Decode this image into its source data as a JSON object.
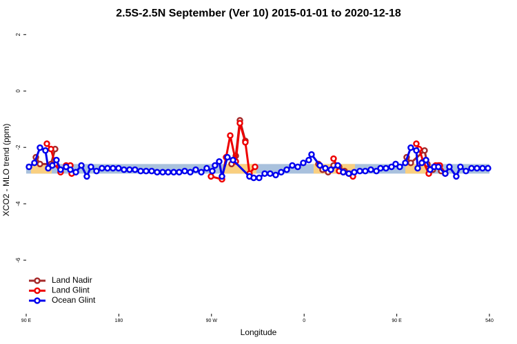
{
  "chart_data": {
    "type": "line",
    "title": "2.5S-2.5N September (Ver 10)   2015-01-01 to 2020-12-18",
    "x_label": "Longitude",
    "y_label": "XCO2 - MLO trend (ppm)",
    "xlim": [
      90,
      540
    ],
    "ylim": [
      -7.9,
      2.3
    ],
    "xticks": [
      {
        "value": 90,
        "label": "90 E"
      },
      180,
      {
        "value": 270,
        "label": "90 W"
      },
      {
        "value": 360,
        "label": "0"
      },
      {
        "value": 450,
        "label": "90 E"
      },
      540
    ],
    "yticks": [
      -6,
      -4,
      -2,
      0,
      2
    ],
    "legend": "bottom-left",
    "band": {
      "lower": -2.93,
      "upper": -2.59,
      "color": "#a9c1dd",
      "land_color": "#f9cf80",
      "land_segments": [
        [
          94.7,
          114.8
        ],
        [
          282.2,
          313.6
        ],
        [
          369.2,
          409.4
        ],
        [
          458.3,
          483.1
        ]
      ]
    },
    "series": [
      {
        "name": "Land Nadir",
        "color": "#a52a2a",
        "x": [
          99.4,
          103.4,
          114.1,
          118.1,
          289.5,
          293.6,
          297.6,
          302.9,
          373.9,
          377.9,
          383.3,
          388.6,
          394.0,
          399.3,
          459.6,
          463.6,
          477.0,
          479.7,
          485.0,
          490.4,
          493.1
        ],
        "values": [
          -2.35,
          -2.59,
          -2.59,
          -2.06,
          -2.59,
          -2.3,
          -1.04,
          -1.77,
          -2.59,
          -2.79,
          -2.88,
          -2.64,
          -2.69,
          -2.84,
          -2.35,
          -2.55,
          -2.11,
          -2.59,
          -2.79,
          -2.64,
          -2.84
        ]
      },
      {
        "name": "Land Glint",
        "color": "#ee0000",
        "x": [
          110.1,
          114.1,
          118.1,
          123.4,
          128.8,
          132.9,
          134.2,
          269.5,
          280.2,
          284.2,
          288.2,
          293.6,
          297.6,
          302.9,
          306.9,
          312.3,
          388.6,
          394.0,
          398.0,
          403.4,
          407.4,
          469.0,
          471.7,
          475.7,
          481.1,
          487.8,
          491.8,
          497.1
        ],
        "values": [
          -1.87,
          -2.06,
          -2.59,
          -2.88,
          -2.64,
          -2.64,
          -2.93,
          -3.03,
          -3.13,
          -2.35,
          -1.58,
          -2.5,
          -1.14,
          -1.82,
          -2.93,
          -2.69,
          -2.4,
          -2.84,
          -2.88,
          -2.93,
          -3.03,
          -1.87,
          -2.06,
          -2.5,
          -2.93,
          -2.64,
          -2.64,
          -2.93
        ]
      },
      {
        "name": "Ocean Glint",
        "color": "#0000ee",
        "x": [
          92.7,
          98.0,
          103.4,
          108.7,
          111.4,
          115.4,
          119.4,
          123.4,
          128.8,
          132.9,
          138.2,
          143.6,
          148.9,
          152.9,
          158.3,
          163.6,
          169.0,
          174.3,
          179.7,
          185.0,
          190.4,
          195.7,
          201.2,
          206.5,
          211.9,
          217.2,
          222.6,
          227.9,
          233.3,
          238.6,
          244.0,
          249.4,
          254.7,
          260.1,
          265.4,
          270.8,
          273.4,
          277.5,
          280.2,
          285.5,
          290.9,
          306.9,
          311.0,
          316.3,
          321.7,
          327.0,
          332.4,
          337.7,
          343.1,
          348.5,
          353.8,
          359.2,
          364.5,
          367.2,
          375.3,
          380.6,
          386.0,
          392.7,
          398.0,
          403.4,
          408.7,
          414.1,
          419.4,
          424.8,
          430.2,
          434.2,
          439.5,
          444.9,
          448.9,
          452.9,
          458.3,
          463.6,
          469.0,
          470.3,
          474.3,
          478.4,
          482.4,
          486.4,
          490.4,
          497.1,
          501.1,
          507.8,
          511.8,
          517.2,
          522.6,
          527.9,
          533.3,
          538.6
        ],
        "values": [
          -2.69,
          -2.55,
          -2.01,
          -2.11,
          -2.74,
          -2.64,
          -2.45,
          -2.79,
          -2.69,
          -2.79,
          -2.88,
          -2.64,
          -3.03,
          -2.69,
          -2.84,
          -2.74,
          -2.74,
          -2.74,
          -2.74,
          -2.79,
          -2.79,
          -2.79,
          -2.84,
          -2.84,
          -2.84,
          -2.88,
          -2.88,
          -2.88,
          -2.88,
          -2.88,
          -2.84,
          -2.88,
          -2.79,
          -2.88,
          -2.74,
          -2.84,
          -2.64,
          -2.5,
          -3.03,
          -2.35,
          -2.45,
          -3.03,
          -3.08,
          -3.08,
          -2.93,
          -2.93,
          -2.98,
          -2.88,
          -2.79,
          -2.64,
          -2.69,
          -2.55,
          -2.45,
          -2.25,
          -2.64,
          -2.74,
          -2.79,
          -2.64,
          -2.88,
          -2.93,
          -2.88,
          -2.84,
          -2.84,
          -2.79,
          -2.84,
          -2.74,
          -2.74,
          -2.69,
          -2.59,
          -2.69,
          -2.55,
          -2.01,
          -2.11,
          -2.74,
          -2.55,
          -2.45,
          -2.79,
          -2.69,
          -2.69,
          -2.93,
          -2.69,
          -3.03,
          -2.69,
          -2.84,
          -2.74,
          -2.74,
          -2.74,
          -2.74
        ]
      }
    ]
  }
}
